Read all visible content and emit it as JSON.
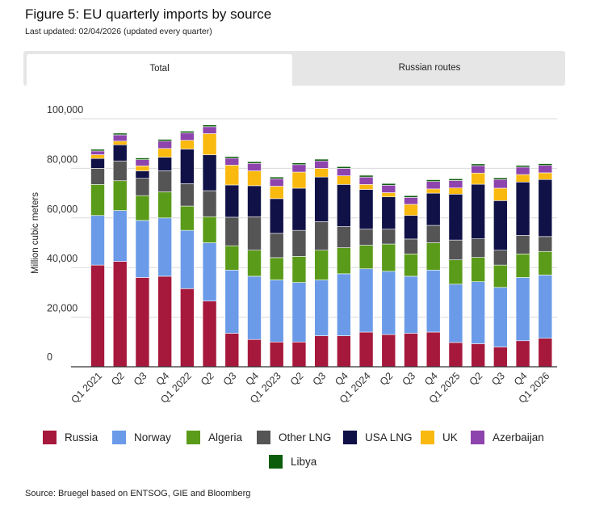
{
  "header": {
    "title": "Figure 5: EU quarterly imports by source",
    "updated": "Last updated: 02/04/2026 (updated every quarter)"
  },
  "tabs": [
    {
      "label": "Total",
      "active": true
    },
    {
      "label": "Russian routes",
      "active": false
    }
  ],
  "chart_data": {
    "type": "bar",
    "stacked": true,
    "ylabel": "Million cubic meters",
    "xlabel": "",
    "ylim": [
      0,
      100000
    ],
    "yticks": [
      0,
      20000,
      40000,
      60000,
      80000,
      100000
    ],
    "ytick_labels": [
      "0",
      "20,000",
      "40,000",
      "60,000",
      "80,000",
      "100,000"
    ],
    "categories": [
      "Q1 2021",
      "Q2",
      "Q3",
      "Q4",
      "Q1 2022",
      "Q2",
      "Q3",
      "Q4",
      "Q1 2023",
      "Q2",
      "Q3",
      "Q4",
      "Q1 2024",
      "Q2",
      "Q3",
      "Q4",
      "Q1 2025",
      "Q2",
      "Q3",
      "Q4",
      "Q1 2026"
    ],
    "tick_labels": [
      "Q1 2021",
      "Q2",
      "Q3",
      "Q4",
      "Q1 2022",
      "Q2",
      "Q3",
      "Q4",
      "Q1 2023",
      "Q2",
      "Q3",
      "Q4",
      "Q1 2024",
      "Q2",
      "Q3",
      "Q4",
      "Q1 2025",
      "Q2",
      "Q3",
      "Q4",
      "Q1 2026"
    ],
    "series": [
      {
        "name": "Russia",
        "color": "#a6193c",
        "values": [
          41000,
          42500,
          36000,
          36500,
          31500,
          26500,
          13500,
          11000,
          10000,
          10000,
          12500,
          12500,
          14000,
          13000,
          13500,
          14000,
          9800,
          9300,
          8000,
          10500,
          11500
        ]
      },
      {
        "name": "Norway",
        "color": "#6b9be8",
        "values": [
          20000,
          20500,
          23000,
          23500,
          23500,
          23500,
          25500,
          25500,
          25000,
          24000,
          22500,
          25000,
          25500,
          25500,
          23000,
          25000,
          23500,
          25000,
          24000,
          25500,
          25500
        ]
      },
      {
        "name": "Algeria",
        "color": "#5a9b1a",
        "values": [
          12500,
          12000,
          10000,
          10500,
          9800,
          10500,
          9800,
          10500,
          9000,
          10500,
          12000,
          10500,
          9500,
          11000,
          9000,
          11000,
          9800,
          9800,
          9000,
          9500,
          9500
        ]
      },
      {
        "name": "Other LNG",
        "color": "#555555",
        "values": [
          6500,
          8000,
          7000,
          8500,
          9000,
          10500,
          11500,
          13500,
          9800,
          10500,
          11500,
          8500,
          6500,
          6000,
          6000,
          7000,
          8000,
          7500,
          6000,
          7500,
          6000
        ]
      },
      {
        "name": "USA LNG",
        "color": "#101147",
        "values": [
          4000,
          6500,
          3000,
          5500,
          14000,
          14500,
          13000,
          12500,
          14000,
          17000,
          18000,
          17000,
          16000,
          13000,
          9500,
          13000,
          18500,
          22000,
          20000,
          21500,
          23000
        ]
      },
      {
        "name": "UK",
        "color": "#f9b90f",
        "values": [
          1500,
          1500,
          2000,
          3500,
          3500,
          8500,
          8000,
          6000,
          5000,
          6500,
          3500,
          3500,
          2000,
          1700,
          4500,
          1700,
          2500,
          4500,
          5000,
          3000,
          2700
        ]
      },
      {
        "name": "Azerbaijan",
        "color": "#8e44ad",
        "values": [
          1500,
          2500,
          2500,
          3000,
          3000,
          2800,
          2800,
          3000,
          3000,
          3000,
          3000,
          3000,
          3000,
          3000,
          2800,
          3000,
          3000,
          3000,
          3500,
          3000,
          3000
        ]
      },
      {
        "name": "Libya",
        "color": "#0b5d0b",
        "values": [
          700,
          700,
          700,
          700,
          700,
          700,
          700,
          700,
          700,
          700,
          700,
          700,
          700,
          700,
          700,
          700,
          700,
          700,
          700,
          700,
          700
        ]
      }
    ]
  },
  "legend": {
    "items": [
      "Russia",
      "Norway",
      "Algeria",
      "Other LNG",
      "USA LNG",
      "UK",
      "Azerbaijan",
      "Libya"
    ]
  },
  "footer": {
    "source": "Source: Bruegel based on ENTSOG, GIE and Bloomberg"
  }
}
